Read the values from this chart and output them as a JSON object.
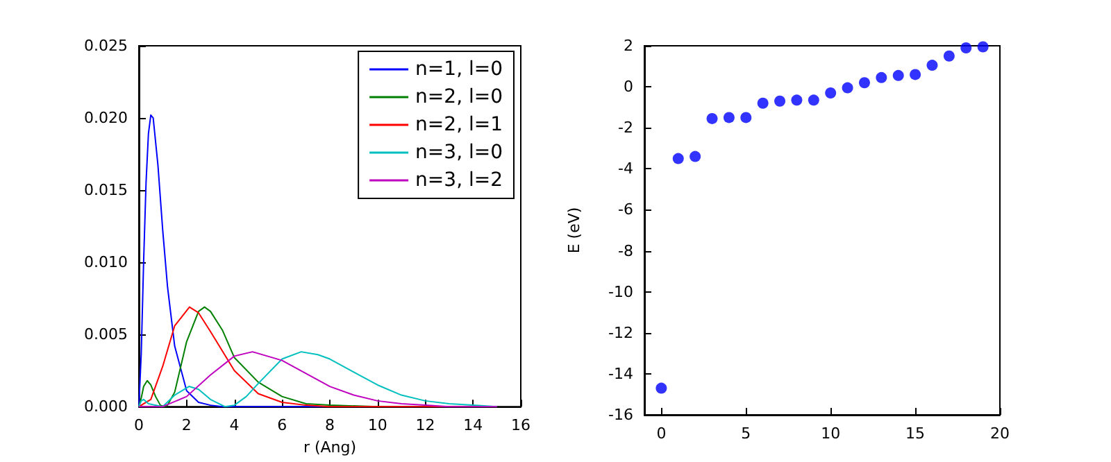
{
  "chart_data": [
    {
      "type": "line",
      "xlabel": "r (Ang)",
      "xlim": [
        0,
        16
      ],
      "xticks": [
        0,
        2,
        4,
        6,
        8,
        10,
        12,
        14,
        16
      ],
      "ylim": [
        0,
        0.025
      ],
      "yticks": [
        {
          "value": 0,
          "label": "0.000"
        },
        {
          "value": 0.005,
          "label": "0.005"
        },
        {
          "value": 0.01,
          "label": "0.010"
        },
        {
          "value": 0.015,
          "label": "0.015"
        },
        {
          "value": 0.02,
          "label": "0.020"
        },
        {
          "value": 0.025,
          "label": "0.025"
        }
      ],
      "grid": false,
      "legend": "top right",
      "marker": "none",
      "line_style": "solid",
      "series": [
        {
          "name": "n=1, l=0",
          "color": "#0000ff",
          "x": [
            0,
            0.1,
            0.2,
            0.3,
            0.4,
            0.5,
            0.6,
            0.8,
            1.0,
            1.2,
            1.5,
            2.0,
            2.5,
            3.0,
            3.5,
            4,
            15
          ],
          "values": [
            0,
            0.0037,
            0.0101,
            0.0155,
            0.0189,
            0.0202,
            0.02,
            0.0167,
            0.0122,
            0.0083,
            0.0042,
            0.0011,
            0.0003,
            0.0001,
            0,
            0,
            0
          ]
        },
        {
          "name": "n=2, l=0",
          "color": "#008000",
          "x": [
            0,
            0.1,
            0.2,
            0.35,
            0.5,
            0.7,
            0.9,
            1.06,
            1.2,
            1.5,
            2,
            2.5,
            2.75,
            3,
            3.5,
            4,
            5,
            6,
            7,
            8,
            10,
            15
          ],
          "values": [
            0,
            0.0006,
            0.0014,
            0.0018,
            0.0015,
            0.0007,
            0.0001,
            0,
            0.0001,
            0.001,
            0.0045,
            0.0066,
            0.0069,
            0.0066,
            0.0053,
            0.0034,
            0.0017,
            0.0007,
            0.0002,
            0.0001,
            0,
            0
          ]
        },
        {
          "name": "n=2, l=1",
          "color": "#ff0000",
          "x": [
            0,
            0.5,
            1,
            1.5,
            2.12,
            2.5,
            3,
            4,
            5,
            6,
            7,
            8,
            15
          ],
          "values": [
            0,
            0.0005,
            0.0028,
            0.0056,
            0.0069,
            0.0065,
            0.0052,
            0.0025,
            0.0009,
            0.0003,
            0.0001,
            0,
            0
          ]
        },
        {
          "name": "n=3, l=0",
          "color": "#00bfbf",
          "x": [
            0,
            0.1,
            0.2,
            0.4,
            0.7,
            1.0,
            1.5,
            2.1,
            2.5,
            3,
            3.6,
            4,
            4.5,
            5,
            6,
            6.8,
            7.5,
            8,
            9,
            10,
            11,
            12,
            13,
            14,
            15
          ],
          "values": [
            0,
            0.0004,
            0.0005,
            0.0002,
            0.0001,
            0,
            0.0008,
            0.0014,
            0.0012,
            0.0005,
            0,
            0.0001,
            0.0007,
            0.0016,
            0.0033,
            0.0038,
            0.0036,
            0.0033,
            0.0024,
            0.0015,
            0.0008,
            0.0004,
            0.0002,
            0.0001,
            0
          ]
        },
        {
          "name": "n=3, l=2",
          "color": "#bf00bf",
          "x": [
            0,
            1,
            2,
            3,
            4,
            4.76,
            6,
            7,
            8,
            9,
            10,
            11,
            12,
            13,
            14,
            15
          ],
          "values": [
            0,
            0,
            0.0007,
            0.0022,
            0.0035,
            0.0038,
            0.0032,
            0.0023,
            0.0014,
            0.0008,
            0.0004,
            0.0002,
            0.0001,
            0,
            0,
            0
          ]
        }
      ]
    },
    {
      "type": "scatter",
      "ylabel": "E (eV)",
      "xlim": [
        -1,
        20
      ],
      "xticks": [
        0,
        5,
        10,
        15,
        20
      ],
      "ylim": [
        -16,
        2
      ],
      "yticks": [
        -16,
        -14,
        -12,
        -10,
        -8,
        -6,
        -4,
        -2,
        0,
        2
      ],
      "grid": false,
      "legend": false,
      "marker": "circle",
      "series": [
        {
          "color": "#0000ff",
          "x": [
            0,
            1,
            2,
            3,
            4,
            5,
            6,
            7,
            8,
            9,
            10,
            11,
            12,
            13,
            14,
            15,
            16,
            17,
            18,
            19
          ],
          "values": [
            -14.7,
            -3.5,
            -3.4,
            -1.55,
            -1.5,
            -1.5,
            -0.8,
            -0.7,
            -0.65,
            -0.65,
            -0.3,
            -0.05,
            0.2,
            0.45,
            0.55,
            0.6,
            1.05,
            1.5,
            1.9,
            1.95
          ]
        }
      ]
    }
  ]
}
